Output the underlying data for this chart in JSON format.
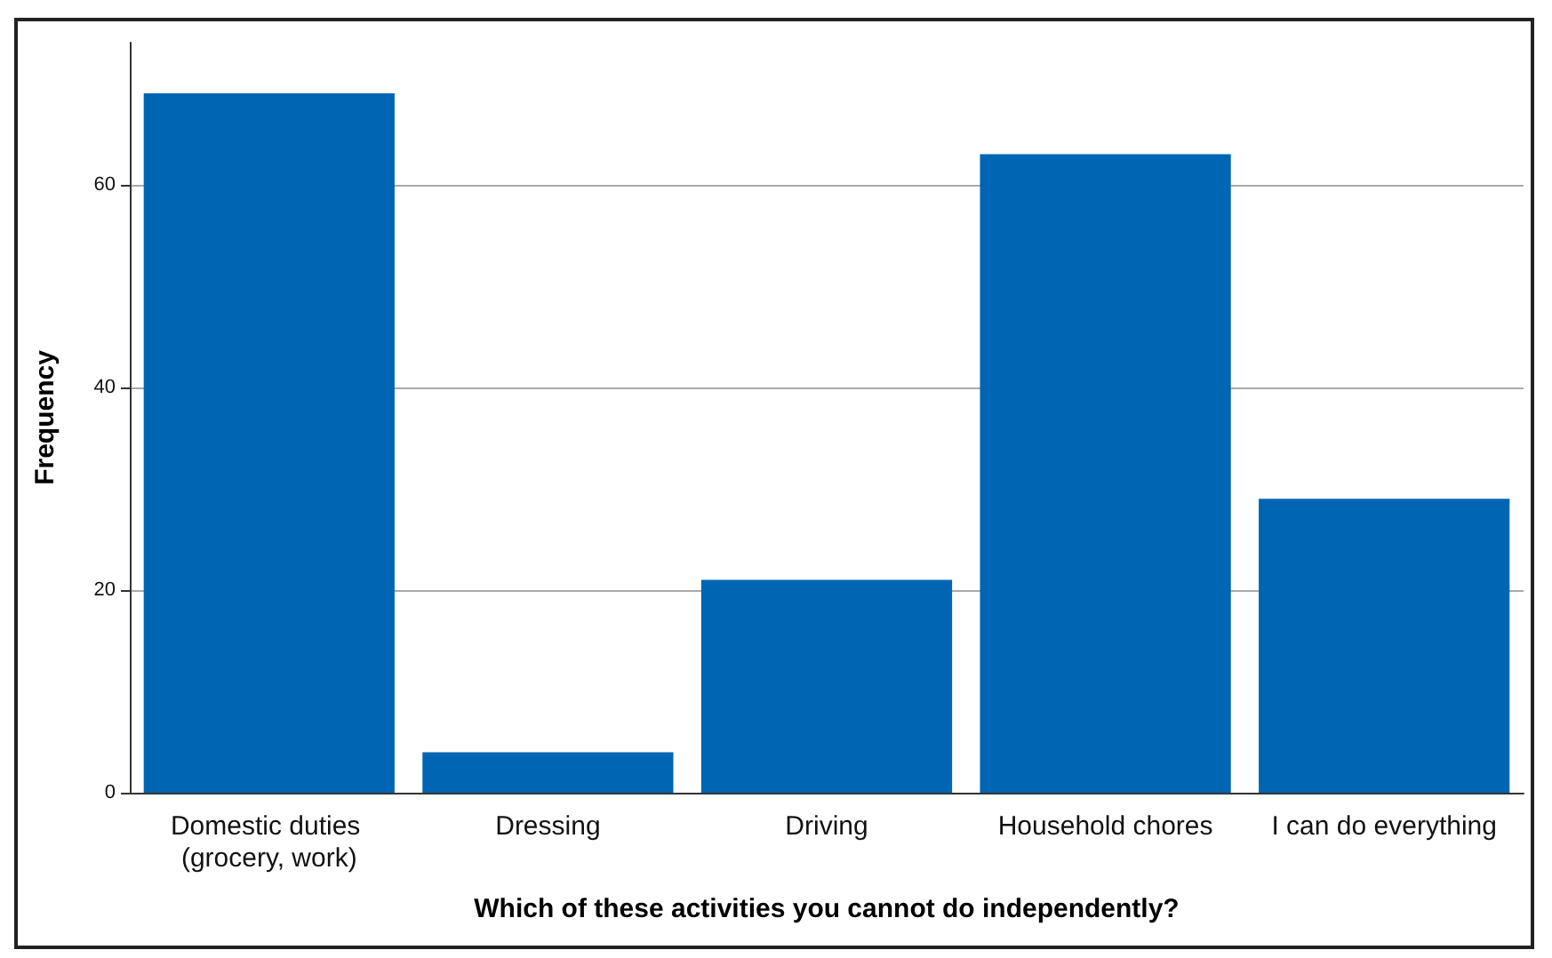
{
  "chart_data": {
    "type": "bar",
    "xlabel": "Which of these activities you cannot do independently?",
    "ylabel": "Frequency",
    "categories": [
      "Domestic duties (grocery, work)",
      "Dressing",
      "Driving",
      "Household chores",
      "I can do everything"
    ],
    "values": [
      69,
      4,
      21,
      63,
      29
    ],
    "color": "#0066b3",
    "ylim": [
      0,
      74
    ],
    "yticks": [
      0,
      20,
      40,
      60
    ],
    "grid": "y"
  }
}
